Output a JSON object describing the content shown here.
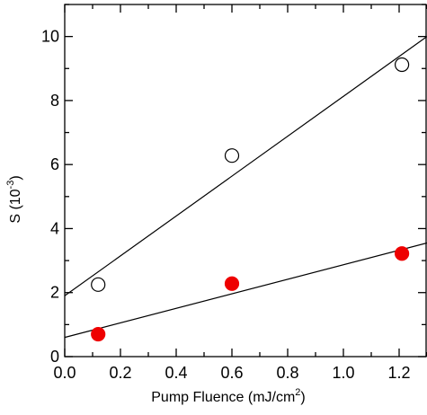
{
  "chart_data": {
    "type": "scatter",
    "title": "",
    "xlabel": {
      "main": "Pump Fluence (mJ/cm",
      "sup": "2",
      "tail": ")"
    },
    "ylabel": {
      "main": "S (10",
      "sup": "-3",
      "tail": ")"
    },
    "xlim": [
      0.0,
      1.3
    ],
    "ylim": [
      0,
      11
    ],
    "xticks": [
      0.0,
      0.2,
      0.4,
      0.6,
      0.8,
      1.0,
      1.2
    ],
    "xtick_labels": [
      "0.0",
      "0.2",
      "0.4",
      "0.6",
      "0.8",
      "1.0",
      "1.2"
    ],
    "yticks": [
      0,
      2,
      4,
      6,
      8,
      10
    ],
    "ytick_labels": [
      "0",
      "2",
      "4",
      "6",
      "8",
      "10"
    ],
    "grid": false,
    "legend": "none",
    "series": [
      {
        "marker": "open-circle",
        "color": "#000000",
        "x": [
          0.12,
          0.6,
          1.21
        ],
        "y": [
          2.25,
          6.28,
          9.12
        ],
        "fit": {
          "x": [
            0.0,
            1.3
          ],
          "y": [
            1.9,
            10.0
          ]
        }
      },
      {
        "marker": "filled-circle",
        "color": "#ee0000",
        "x": [
          0.12,
          0.6,
          1.21
        ],
        "y": [
          0.7,
          2.28,
          3.22
        ],
        "fit": {
          "x": [
            0.0,
            1.3
          ],
          "y": [
            0.6,
            3.55
          ]
        }
      }
    ]
  }
}
